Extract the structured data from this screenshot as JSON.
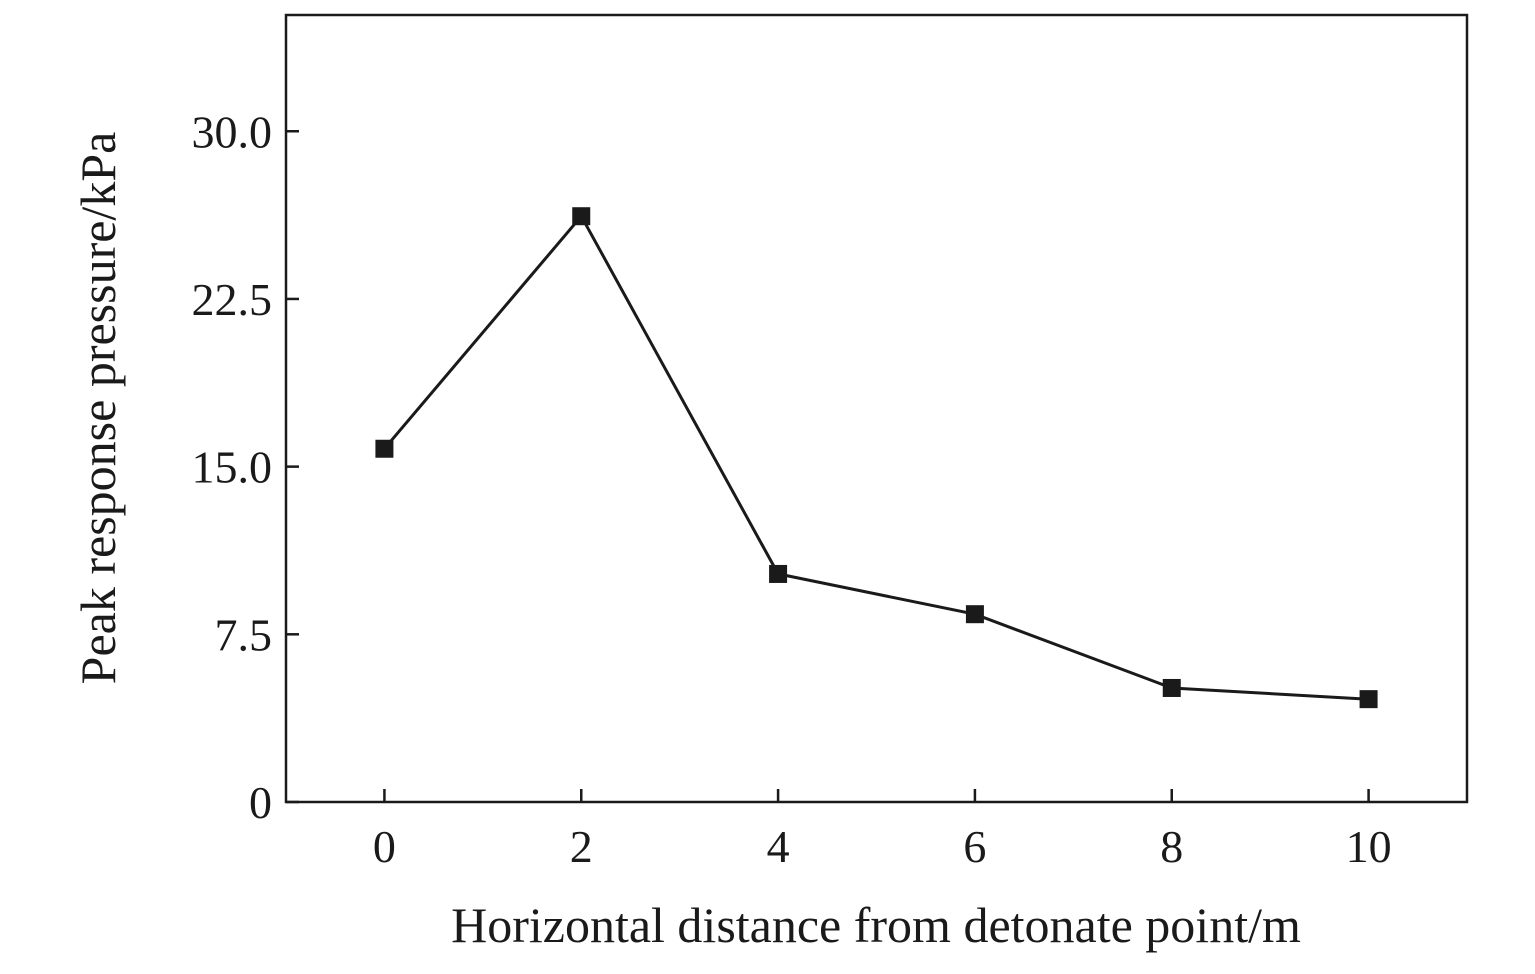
{
  "chart_data": {
    "type": "line",
    "title": "",
    "xlabel": "Horizontal distance from detonate point/m",
    "ylabel": "Peak response pressure/kPa",
    "x": [
      0,
      2,
      4,
      6,
      8,
      10
    ],
    "series": [
      {
        "values": [
          15.8,
          26.2,
          10.2,
          8.4,
          5.1,
          4.6
        ]
      }
    ],
    "xlim": [
      -1,
      11
    ],
    "ylim": [
      0,
      35.2
    ],
    "xticks": [
      0,
      2,
      4,
      6,
      8,
      10
    ],
    "xtick_labels": [
      "0",
      "2",
      "4",
      "6",
      "8",
      "10"
    ],
    "yticks": [
      0,
      7.5,
      15,
      22.5,
      30
    ],
    "ytick_labels": [
      "0",
      "7.5",
      "15.0",
      "22.5",
      "30.0"
    ],
    "grid": false,
    "legend": "none",
    "marker": "square",
    "colors": {
      "line": "#1a1a1a",
      "marker": "#1a1a1a",
      "axis": "#1a1a1a"
    }
  }
}
